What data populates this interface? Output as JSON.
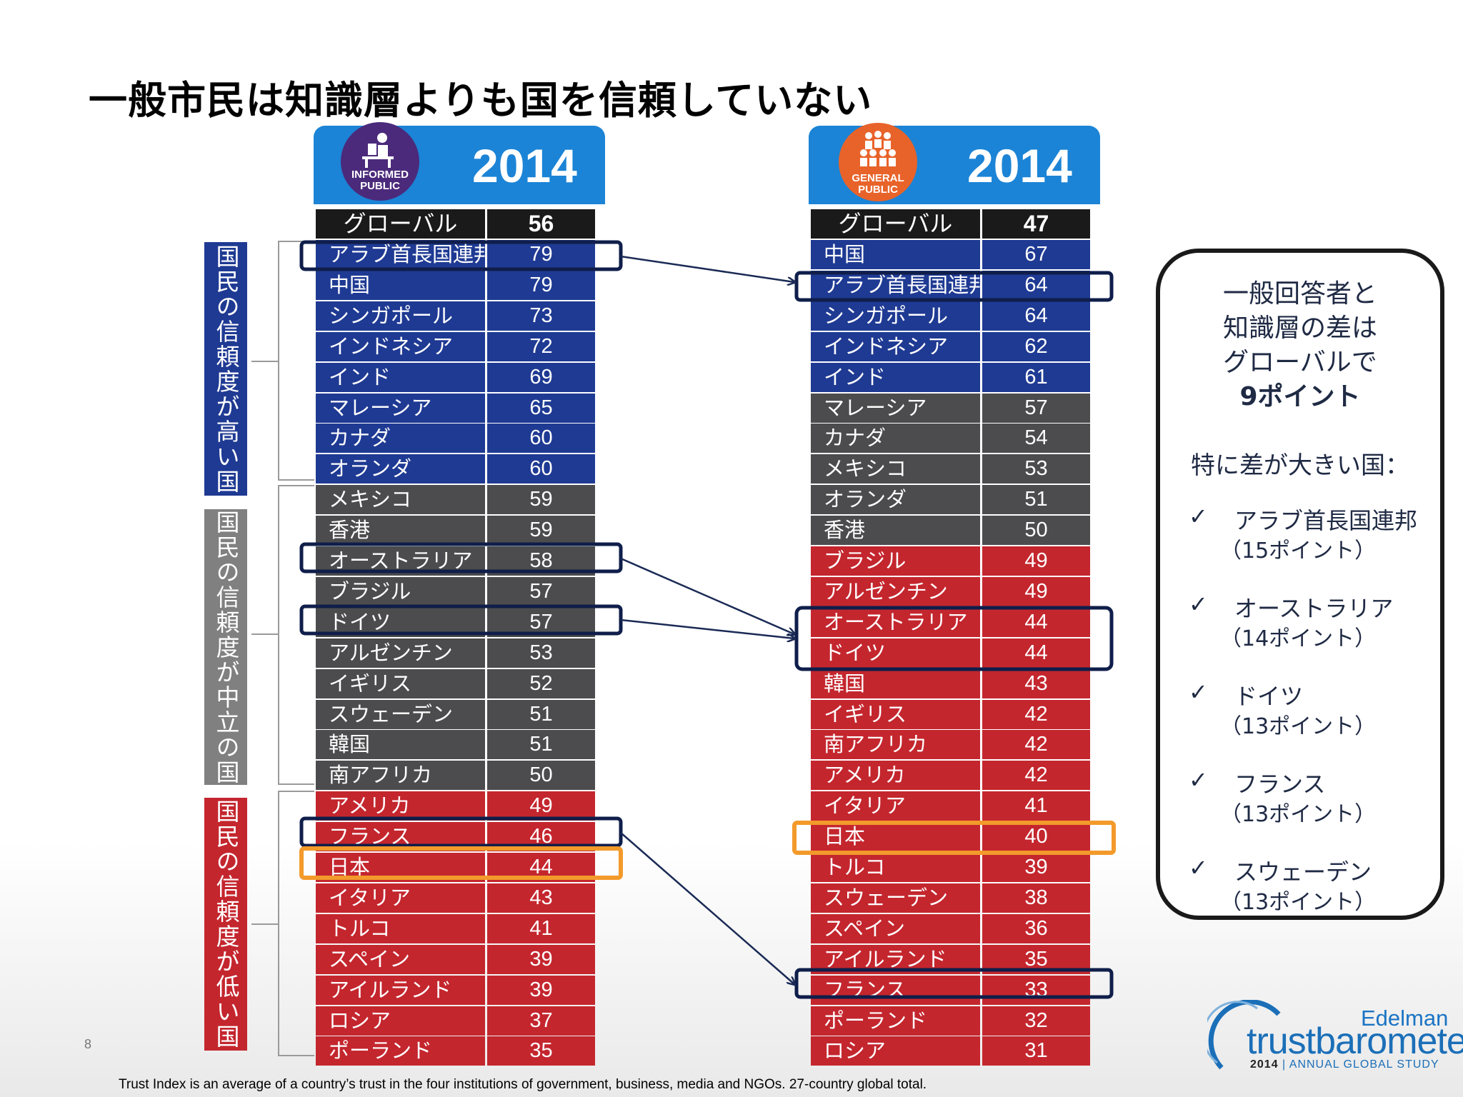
{
  "title": "一般市民は知識層よりも国を信頼していない",
  "informed": {
    "year": "2014",
    "badge": [
      "INFORMED",
      "PUBLIC"
    ],
    "global": {
      "label": "グローバル",
      "value": "56"
    },
    "rows": [
      {
        "name": "アラブ首長国連邦",
        "value": "79",
        "tier": "high"
      },
      {
        "name": "中国",
        "value": "79",
        "tier": "high"
      },
      {
        "name": "シンガポール",
        "value": "73",
        "tier": "high"
      },
      {
        "name": "インドネシア",
        "value": "72",
        "tier": "high"
      },
      {
        "name": "インド",
        "value": "69",
        "tier": "high"
      },
      {
        "name": "マレーシア",
        "value": "65",
        "tier": "high"
      },
      {
        "name": "カナダ",
        "value": "60",
        "tier": "high"
      },
      {
        "name": "オランダ",
        "value": "60",
        "tier": "high"
      },
      {
        "name": "メキシコ",
        "value": "59",
        "tier": "mid"
      },
      {
        "name": "香港",
        "value": "59",
        "tier": "mid"
      },
      {
        "name": "オーストラリア",
        "value": "58",
        "tier": "mid"
      },
      {
        "name": "ブラジル",
        "value": "57",
        "tier": "mid"
      },
      {
        "name": "ドイツ",
        "value": "57",
        "tier": "mid"
      },
      {
        "name": "アルゼンチン",
        "value": "53",
        "tier": "mid"
      },
      {
        "name": "イギリス",
        "value": "52",
        "tier": "mid"
      },
      {
        "name": "スウェーデン",
        "value": "51",
        "tier": "mid"
      },
      {
        "name": "韓国",
        "value": "51",
        "tier": "mid"
      },
      {
        "name": "南アフリカ",
        "value": "50",
        "tier": "mid"
      },
      {
        "name": "アメリカ",
        "value": "49",
        "tier": "low"
      },
      {
        "name": "フランス",
        "value": "46",
        "tier": "low"
      },
      {
        "name": "日本",
        "value": "44",
        "tier": "low"
      },
      {
        "name": "イタリア",
        "value": "43",
        "tier": "low"
      },
      {
        "name": "トルコ",
        "value": "41",
        "tier": "low"
      },
      {
        "name": "スペイン",
        "value": "39",
        "tier": "low"
      },
      {
        "name": "アイルランド",
        "value": "39",
        "tier": "low"
      },
      {
        "name": "ロシア",
        "value": "37",
        "tier": "low"
      },
      {
        "name": "ポーランド",
        "value": "35",
        "tier": "low"
      }
    ]
  },
  "general": {
    "year": "2014",
    "badge": [
      "GENERAL",
      "PUBLIC"
    ],
    "global": {
      "label": "グローバル",
      "value": "47"
    },
    "rows": [
      {
        "name": "中国",
        "value": "67",
        "tier": "high"
      },
      {
        "name": "アラブ首長国連邦",
        "value": "64",
        "tier": "high"
      },
      {
        "name": "シンガポール",
        "value": "64",
        "tier": "high"
      },
      {
        "name": "インドネシア",
        "value": "62",
        "tier": "high"
      },
      {
        "name": "インド",
        "value": "61",
        "tier": "high"
      },
      {
        "name": "マレーシア",
        "value": "57",
        "tier": "mid"
      },
      {
        "name": "カナダ",
        "value": "54",
        "tier": "mid"
      },
      {
        "name": "メキシコ",
        "value": "53",
        "tier": "mid"
      },
      {
        "name": "オランダ",
        "value": "51",
        "tier": "mid"
      },
      {
        "name": "香港",
        "value": "50",
        "tier": "mid"
      },
      {
        "name": "ブラジル",
        "value": "49",
        "tier": "low"
      },
      {
        "name": "アルゼンチン",
        "value": "49",
        "tier": "low"
      },
      {
        "name": "オーストラリア",
        "value": "44",
        "tier": "low"
      },
      {
        "name": "ドイツ",
        "value": "44",
        "tier": "low"
      },
      {
        "name": "韓国",
        "value": "43",
        "tier": "low"
      },
      {
        "name": "イギリス",
        "value": "42",
        "tier": "low"
      },
      {
        "name": "南アフリカ",
        "value": "42",
        "tier": "low"
      },
      {
        "name": "アメリカ",
        "value": "42",
        "tier": "low"
      },
      {
        "name": "イタリア",
        "value": "41",
        "tier": "low"
      },
      {
        "name": "日本",
        "value": "40",
        "tier": "low"
      },
      {
        "name": "トルコ",
        "value": "39",
        "tier": "low"
      },
      {
        "name": "スウェーデン",
        "value": "38",
        "tier": "low"
      },
      {
        "name": "スペイン",
        "value": "36",
        "tier": "low"
      },
      {
        "name": "アイルランド",
        "value": "35",
        "tier": "low"
      },
      {
        "name": "フランス",
        "value": "33",
        "tier": "low"
      },
      {
        "name": "ポーランド",
        "value": "32",
        "tier": "low"
      },
      {
        "name": "ロシア",
        "value": "31",
        "tier": "low"
      }
    ]
  },
  "categories": {
    "high": "国民の信頼度が高い国",
    "mid": "国民の信頼度が中立の国",
    "low": "国民の信頼度が低い国"
  },
  "callout": {
    "lines": [
      "一般回答者と",
      "知識層の差は",
      "グローバルで"
    ],
    "highlight": "9ポイント",
    "subheading": "特に差が大きい国：",
    "items": [
      {
        "country": "アラブ首長国連邦",
        "diff": "（15ポイント）"
      },
      {
        "country": "オーストラリア",
        "diff": "（14ポイント）"
      },
      {
        "country": "ドイツ",
        "diff": "（13ポイント）"
      },
      {
        "country": "フランス",
        "diff": "（13ポイント）"
      },
      {
        "country": "スウェーデン",
        "diff": "（13ポイント）"
      }
    ]
  },
  "footnote": "Trust Index is an average of a country’s trust in the four institutions of government, business, media and NGOs. 27-country global total.",
  "page_number": "8",
  "logo": {
    "brand": "Edelman",
    "product": "trustbarometer",
    "year": "2014",
    "study": "ANNUAL GLOBAL STUDY"
  },
  "colors": {
    "high": "#1f3a93",
    "mid": "#4c4c4e",
    "low": "#c4262e",
    "header": "#1b84d6",
    "informed_badge": "#4b2a7b",
    "general_badge": "#e8632a",
    "japan_highlight": "#f39a2b",
    "highlight_box": "#0f1e4a"
  }
}
